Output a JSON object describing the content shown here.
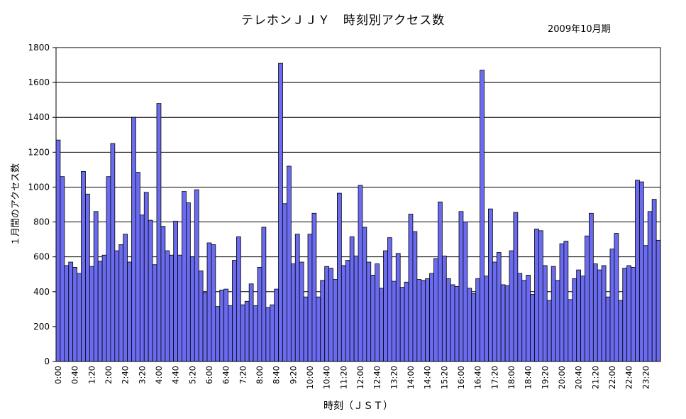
{
  "chart_data": {
    "type": "bar",
    "title": "テレホンＪＪＹ　時刻別アクセス数",
    "subtitle": "2009年10月期",
    "xlabel": "時刻（ＪＳＴ）",
    "ylabel": "１月間のアクセス数",
    "ylim": [
      0,
      1800
    ],
    "yticks": [
      0,
      200,
      400,
      600,
      800,
      1000,
      1200,
      1400,
      1600,
      1800
    ],
    "grid": true,
    "bar_color": "#6b6bf0",
    "x_start": "0:00",
    "x_interval_minutes": 10,
    "x_tick_every": 4,
    "x_tick_labels": [
      "0:00",
      "0:40",
      "1:20",
      "2:00",
      "2:40",
      "3:20",
      "4:00",
      "4:40",
      "5:20",
      "6:00",
      "6:40",
      "7:20",
      "8:00",
      "8:40",
      "9:20",
      "10:00",
      "10:40",
      "11:20",
      "12:00",
      "12:40",
      "13:20",
      "14:00",
      "14:40",
      "15:20",
      "16:00",
      "16:40",
      "17:20",
      "18:00",
      "18:40",
      "19:20",
      "20:00",
      "20:40",
      "21:20",
      "22:00",
      "22:40",
      "23:20"
    ],
    "values": [
      1270,
      1060,
      550,
      570,
      540,
      505,
      1090,
      960,
      545,
      860,
      575,
      610,
      1060,
      1250,
      635,
      670,
      730,
      570,
      1400,
      1085,
      840,
      970,
      810,
      555,
      1480,
      775,
      635,
      610,
      805,
      610,
      975,
      910,
      600,
      985,
      520,
      395,
      680,
      670,
      315,
      410,
      415,
      320,
      580,
      715,
      325,
      345,
      445,
      320,
      540,
      770,
      310,
      325,
      415,
      1710,
      905,
      1120,
      560,
      730,
      570,
      370,
      730,
      850,
      370,
      465,
      545,
      535,
      470,
      965,
      550,
      580,
      715,
      605,
      1010,
      770,
      570,
      495,
      560,
      420,
      635,
      710,
      460,
      620,
      425,
      455,
      845,
      745,
      470,
      465,
      475,
      505,
      590,
      915,
      605,
      475,
      440,
      430,
      860,
      800,
      420,
      390,
      475,
      1670,
      490,
      875,
      570,
      625,
      440,
      435,
      635,
      855,
      505,
      465,
      495,
      385,
      760,
      750,
      550,
      350,
      545,
      465,
      675,
      690,
      355,
      475,
      525,
      490,
      720,
      850,
      560,
      525,
      550,
      370,
      645,
      735,
      350,
      535,
      550,
      540,
      1040,
      1030,
      665,
      860,
      930,
      695
    ]
  }
}
